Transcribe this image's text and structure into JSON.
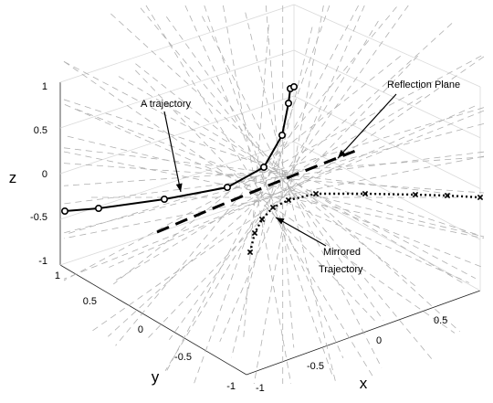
{
  "chart_data": {
    "type": "line3d",
    "zlabel": "z",
    "ylabel": "y",
    "xlabel": "x",
    "z_ticks": [
      "1",
      "0.5",
      "0",
      "-0.5",
      "-1"
    ],
    "y_ticks": [
      "1",
      "0.5",
      "0",
      "-0.5",
      "-1"
    ],
    "x_ticks": [
      "-1",
      "-0.5",
      "0",
      "0.5"
    ],
    "zlim": [
      -1,
      1
    ],
    "grid": true,
    "annotations": {
      "trajectory": "A trajectory",
      "plane": "Reflection Plane",
      "mirrored_line1": "Mirrored",
      "mirrored_line2": "Trajectory"
    },
    "series": [
      {
        "name": "A trajectory",
        "style": "solid black line with circle markers",
        "color": "#000000",
        "points_z": [
          -0.42,
          -0.39,
          -0.33,
          -0.22,
          -0.05,
          0.15,
          0.42,
          0.72,
          0.98
        ]
      },
      {
        "name": "Mirrored Trajectory",
        "style": "dotted black line with x markers",
        "color": "#000000"
      },
      {
        "name": "Reflection Plane",
        "style": "dashed black line",
        "color": "#000000"
      }
    ],
    "background_lines": {
      "style": "dashed",
      "color": "#b0b0b0"
    }
  }
}
